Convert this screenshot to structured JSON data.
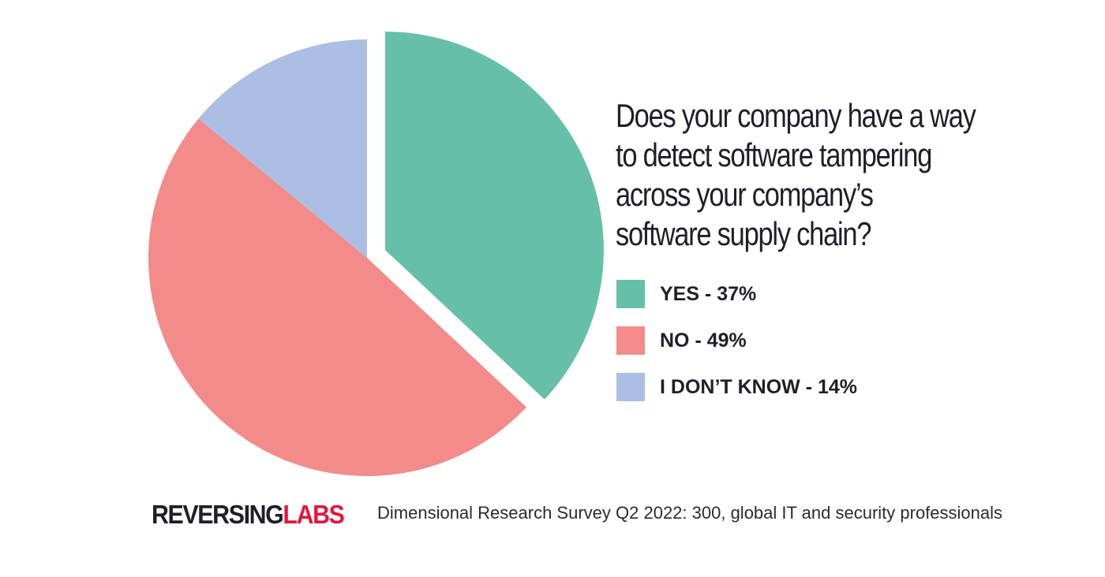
{
  "chart_data": {
    "type": "pie",
    "title_lines": [
      "Does your company have a way",
      "to detect software tampering",
      "across your company’s",
      "software supply chain?"
    ],
    "slices": [
      {
        "label": "YES - 37%",
        "value": 37,
        "color": "#66c0a9",
        "exploded": true
      },
      {
        "label": "NO - 49%",
        "value": 49,
        "color": "#f28b8a",
        "exploded": false
      },
      {
        "label": "I DON’T KNOW - 14%",
        "value": 14,
        "color": "#abbee4",
        "exploded": false
      }
    ],
    "legend_position": "right"
  },
  "footer": {
    "logo_part1": "REVERSING",
    "logo_part2": "LABS",
    "source": "Dimensional Research Survey Q2 2022: 300, global IT and security professionals"
  }
}
